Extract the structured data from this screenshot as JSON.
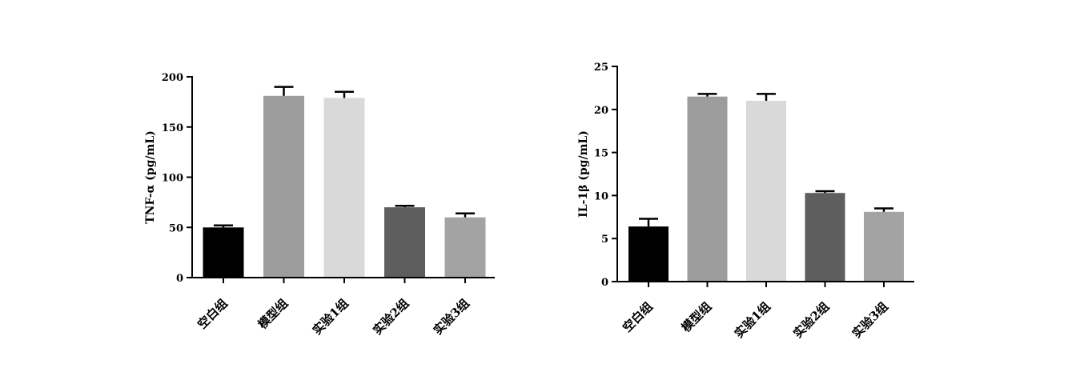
{
  "chart_data": [
    {
      "type": "bar",
      "ylabel": "TNF-α (pg/mL)",
      "xlabel": "",
      "title": "",
      "categories": [
        "空白组",
        "模型组",
        "实验1组",
        "实验2组",
        "实验3组"
      ],
      "values": [
        50,
        181,
        179,
        70,
        60
      ],
      "errors": [
        2,
        9,
        6,
        1.5,
        4
      ],
      "ylim": [
        0,
        200
      ],
      "yticks": [
        0,
        50,
        100,
        150,
        200
      ],
      "bar_colors": [
        "#000000",
        "#9c9c9c",
        "#d9d9d9",
        "#5e5e5e",
        "#a3a3a3"
      ],
      "error_bars": "upper only, black",
      "grid": false,
      "legend": "none"
    },
    {
      "type": "bar",
      "ylabel": "IL-1β (pg/mL)",
      "xlabel": "",
      "title": "",
      "categories": [
        "空白组",
        "模型组",
        "实验1组",
        "实验2组",
        "实验3组"
      ],
      "values": [
        6.4,
        21.5,
        21.0,
        10.3,
        8.1
      ],
      "errors": [
        0.9,
        0.3,
        0.8,
        0.2,
        0.4
      ],
      "ylim": [
        0,
        25
      ],
      "yticks": [
        0,
        5,
        10,
        15,
        20,
        25
      ],
      "bar_colors": [
        "#000000",
        "#9c9c9c",
        "#d9d9d9",
        "#5e5e5e",
        "#a3a3a3"
      ],
      "error_bars": "upper only, black",
      "grid": false,
      "legend": "none"
    }
  ]
}
